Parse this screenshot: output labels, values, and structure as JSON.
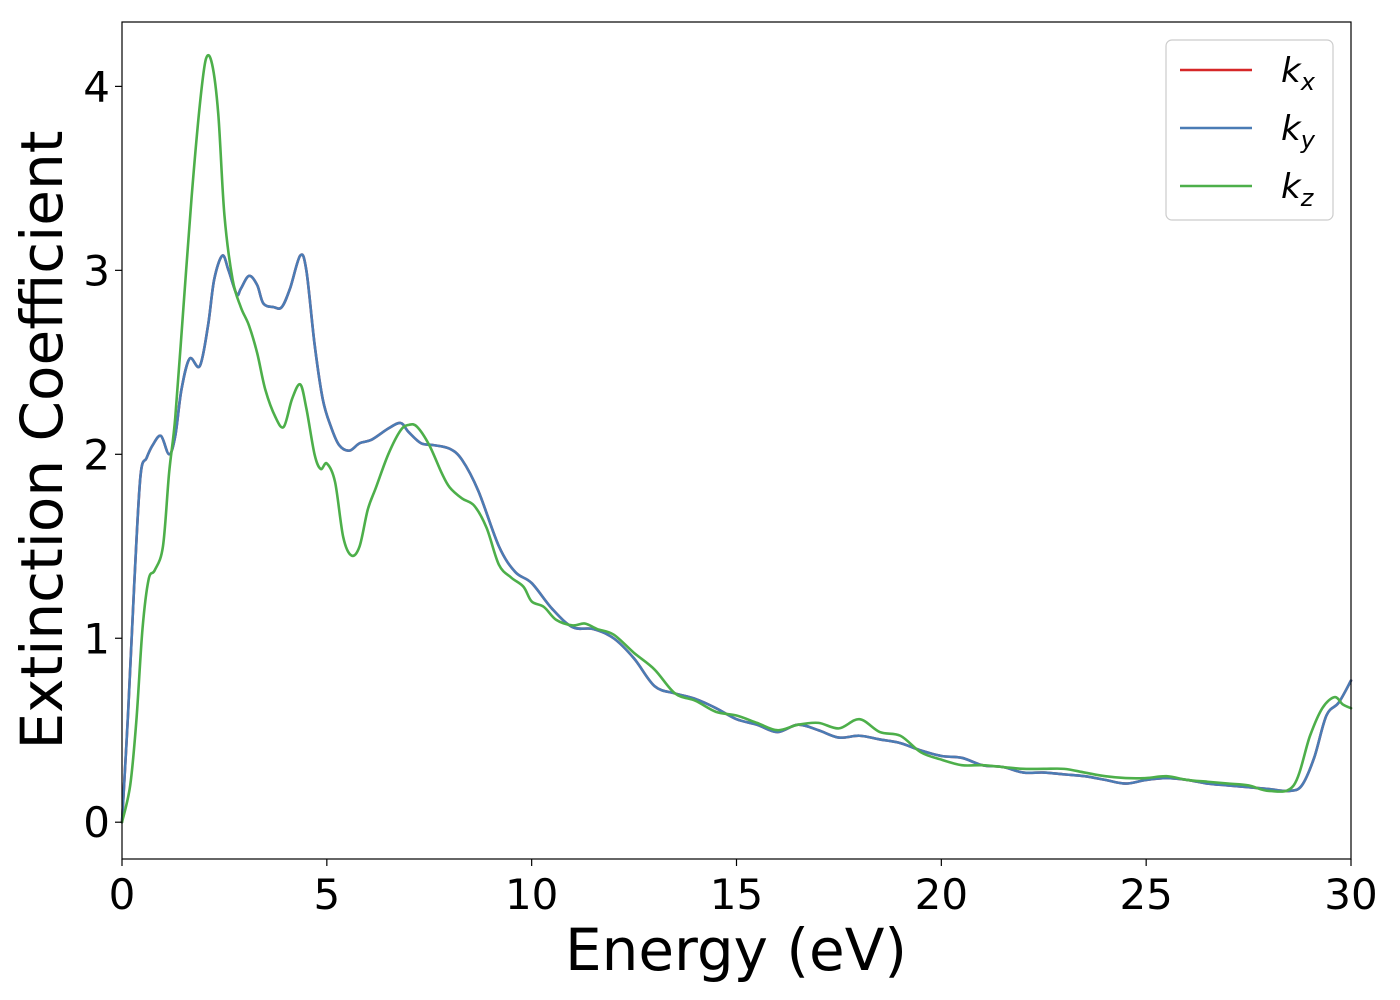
{
  "chart_data": {
    "type": "line",
    "xlabel": "Energy (eV)",
    "ylabel": "Extinction Coefficient",
    "xlim": [
      0,
      30
    ],
    "ylim": [
      -0.2,
      4.35
    ],
    "xticks": [
      0,
      5,
      10,
      15,
      20,
      25,
      30
    ],
    "xtick_labels": [
      "0",
      "5",
      "10",
      "15",
      "20",
      "25",
      "30"
    ],
    "yticks": [
      0,
      1,
      2,
      3,
      4
    ],
    "ytick_labels": [
      "0",
      "1",
      "2",
      "3",
      "4"
    ],
    "grid": false,
    "legend_position": "top-right",
    "series": [
      {
        "name": "k",
        "subscript": "x",
        "color": "#d62728",
        "x": [
          0,
          0.15,
          0.3,
          0.45,
          0.6,
          0.75,
          0.95,
          1.15,
          1.3,
          1.45,
          1.65,
          1.9,
          2.1,
          2.25,
          2.45,
          2.6,
          2.8,
          2.9,
          3.1,
          3.3,
          3.45,
          3.7,
          3.9,
          4.1,
          4.35,
          4.5,
          4.7,
          4.9,
          5.1,
          5.3,
          5.55,
          5.8,
          6.1,
          6.5,
          6.8,
          7.0,
          7.3,
          7.6,
          8.0,
          8.3,
          8.7,
          9.2,
          9.6,
          10.0,
          10.5,
          11.0,
          11.5,
          12.0,
          12.5,
          13.0,
          13.5,
          14.0,
          14.5,
          15.0,
          15.5,
          16.0,
          16.5,
          17.0,
          17.5,
          18.0,
          18.5,
          19.0,
          19.5,
          20.0,
          20.5,
          21.0,
          21.5,
          22.0,
          22.5,
          23.0,
          23.5,
          24.0,
          24.5,
          25.0,
          25.5,
          26.0,
          26.5,
          27.0,
          27.5,
          28.0,
          28.5,
          28.8,
          29.1,
          29.4,
          29.7,
          30.0
        ],
        "values": [
          0.0,
          0.6,
          1.3,
          1.88,
          1.98,
          2.05,
          2.1,
          2.0,
          2.1,
          2.35,
          2.52,
          2.48,
          2.7,
          2.95,
          3.08,
          3.0,
          2.87,
          2.9,
          2.97,
          2.92,
          2.82,
          2.8,
          2.8,
          2.9,
          3.08,
          3.0,
          2.6,
          2.3,
          2.15,
          2.05,
          2.02,
          2.06,
          2.08,
          2.14,
          2.17,
          2.12,
          2.06,
          2.05,
          2.03,
          1.97,
          1.8,
          1.5,
          1.36,
          1.3,
          1.16,
          1.06,
          1.05,
          1.0,
          0.89,
          0.74,
          0.7,
          0.67,
          0.62,
          0.56,
          0.53,
          0.49,
          0.53,
          0.5,
          0.46,
          0.47,
          0.45,
          0.43,
          0.39,
          0.36,
          0.35,
          0.31,
          0.3,
          0.27,
          0.27,
          0.26,
          0.25,
          0.23,
          0.21,
          0.23,
          0.24,
          0.23,
          0.21,
          0.2,
          0.19,
          0.18,
          0.17,
          0.2,
          0.35,
          0.58,
          0.65,
          0.77
        ]
      },
      {
        "name": "k",
        "subscript": "y",
        "color": "#4a7cb5",
        "x": [
          0,
          0.15,
          0.3,
          0.45,
          0.6,
          0.75,
          0.95,
          1.15,
          1.3,
          1.45,
          1.65,
          1.9,
          2.1,
          2.25,
          2.45,
          2.6,
          2.8,
          2.9,
          3.1,
          3.3,
          3.45,
          3.7,
          3.9,
          4.1,
          4.35,
          4.5,
          4.7,
          4.9,
          5.1,
          5.3,
          5.55,
          5.8,
          6.1,
          6.5,
          6.8,
          7.0,
          7.3,
          7.6,
          8.0,
          8.3,
          8.7,
          9.2,
          9.6,
          10.0,
          10.5,
          11.0,
          11.5,
          12.0,
          12.5,
          13.0,
          13.5,
          14.0,
          14.5,
          15.0,
          15.5,
          16.0,
          16.5,
          17.0,
          17.5,
          18.0,
          18.5,
          19.0,
          19.5,
          20.0,
          20.5,
          21.0,
          21.5,
          22.0,
          22.5,
          23.0,
          23.5,
          24.0,
          24.5,
          25.0,
          25.5,
          26.0,
          26.5,
          27.0,
          27.5,
          28.0,
          28.5,
          28.8,
          29.1,
          29.4,
          29.7,
          30.0
        ],
        "values": [
          0.0,
          0.6,
          1.3,
          1.88,
          1.98,
          2.05,
          2.1,
          2.0,
          2.1,
          2.35,
          2.52,
          2.48,
          2.7,
          2.95,
          3.08,
          3.0,
          2.87,
          2.9,
          2.97,
          2.92,
          2.82,
          2.8,
          2.8,
          2.9,
          3.08,
          3.0,
          2.6,
          2.3,
          2.15,
          2.05,
          2.02,
          2.06,
          2.08,
          2.14,
          2.17,
          2.12,
          2.06,
          2.05,
          2.03,
          1.97,
          1.8,
          1.5,
          1.36,
          1.3,
          1.16,
          1.06,
          1.05,
          1.0,
          0.89,
          0.74,
          0.7,
          0.67,
          0.62,
          0.56,
          0.53,
          0.49,
          0.53,
          0.5,
          0.46,
          0.47,
          0.45,
          0.43,
          0.39,
          0.36,
          0.35,
          0.31,
          0.3,
          0.27,
          0.27,
          0.26,
          0.25,
          0.23,
          0.21,
          0.23,
          0.24,
          0.23,
          0.21,
          0.2,
          0.19,
          0.18,
          0.17,
          0.2,
          0.35,
          0.58,
          0.65,
          0.77
        ]
      },
      {
        "name": "k",
        "subscript": "z",
        "color": "#4daf4a",
        "x": [
          0,
          0.2,
          0.35,
          0.5,
          0.65,
          0.8,
          1.0,
          1.15,
          1.3,
          1.5,
          1.7,
          1.9,
          2.05,
          2.2,
          2.35,
          2.5,
          2.7,
          2.9,
          3.1,
          3.3,
          3.5,
          3.75,
          3.95,
          4.15,
          4.35,
          4.5,
          4.7,
          4.85,
          5.0,
          5.2,
          5.4,
          5.6,
          5.8,
          6.0,
          6.2,
          6.5,
          6.8,
          7.0,
          7.2,
          7.5,
          7.8,
          8.0,
          8.3,
          8.6,
          8.9,
          9.2,
          9.5,
          9.8,
          10.0,
          10.3,
          10.6,
          11.0,
          11.3,
          11.6,
          12.0,
          12.5,
          13.0,
          13.5,
          14.0,
          14.5,
          15.0,
          15.5,
          16.0,
          16.5,
          17.0,
          17.5,
          18.0,
          18.5,
          19.0,
          19.5,
          20.0,
          20.5,
          21.0,
          21.5,
          22.0,
          22.5,
          23.0,
          23.5,
          24.0,
          24.5,
          25.0,
          25.5,
          26.0,
          26.5,
          27.0,
          27.5,
          28.0,
          28.6,
          29.0,
          29.3,
          29.6,
          29.8,
          30.0
        ],
        "values": [
          0.0,
          0.2,
          0.55,
          1.05,
          1.32,
          1.37,
          1.5,
          1.9,
          2.2,
          2.8,
          3.4,
          3.9,
          4.15,
          4.12,
          3.85,
          3.3,
          2.95,
          2.8,
          2.7,
          2.55,
          2.35,
          2.2,
          2.15,
          2.3,
          2.38,
          2.25,
          2.0,
          1.92,
          1.95,
          1.85,
          1.55,
          1.45,
          1.5,
          1.7,
          1.82,
          2.0,
          2.13,
          2.16,
          2.15,
          2.05,
          1.9,
          1.82,
          1.76,
          1.72,
          1.6,
          1.4,
          1.33,
          1.28,
          1.2,
          1.17,
          1.1,
          1.07,
          1.08,
          1.05,
          1.02,
          0.92,
          0.83,
          0.7,
          0.66,
          0.6,
          0.58,
          0.54,
          0.5,
          0.53,
          0.54,
          0.51,
          0.56,
          0.49,
          0.47,
          0.38,
          0.34,
          0.31,
          0.31,
          0.3,
          0.29,
          0.29,
          0.29,
          0.27,
          0.25,
          0.24,
          0.24,
          0.25,
          0.23,
          0.22,
          0.21,
          0.2,
          0.17,
          0.2,
          0.47,
          0.62,
          0.68,
          0.64,
          0.62
        ]
      }
    ]
  }
}
